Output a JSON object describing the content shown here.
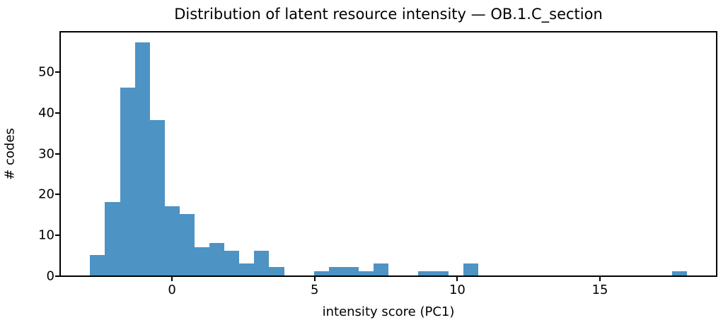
{
  "figure": {
    "background": "#ffffff",
    "axis_color": "#000000",
    "text_color": "#000000"
  },
  "chart_data": {
    "type": "bar",
    "subtype": "histogram",
    "title": "Distribution of latent resource intensity — OB.1.C_section",
    "xlabel": "intensity score (PC1)",
    "ylabel": "# codes",
    "bar_color": "#4d93c4",
    "grid": false,
    "legend": "none",
    "bin_start": -2.87,
    "bin_width": 0.523,
    "values": [
      5,
      18,
      46,
      57,
      38,
      17,
      15,
      7,
      8,
      6,
      3,
      6,
      2,
      0,
      0,
      1,
      2,
      2,
      1,
      3,
      0,
      0,
      1,
      1,
      0,
      3,
      0,
      0,
      0,
      0,
      0,
      0,
      0,
      0,
      0,
      0,
      0,
      0,
      0,
      1
    ],
    "xlim": [
      -3.92,
      19.09
    ],
    "ylim": [
      0,
      59.85
    ],
    "xticks": [
      0,
      5,
      10,
      15
    ],
    "yticks": [
      0,
      10,
      20,
      30,
      40,
      50
    ]
  }
}
